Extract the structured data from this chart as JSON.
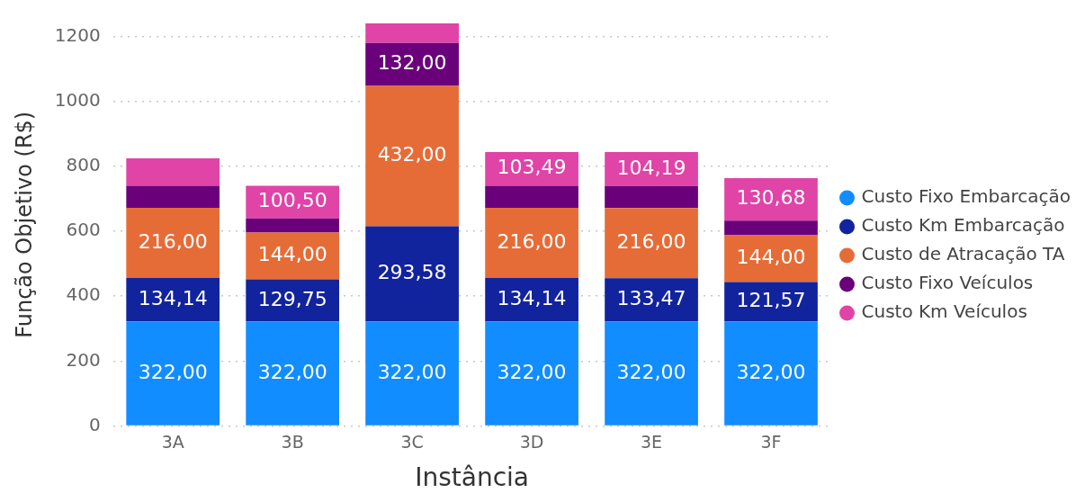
{
  "chart_data": {
    "type": "bar",
    "stacked": true,
    "xlabel": "Instância",
    "ylabel": "Função Objetivo (R$)",
    "categories": [
      "3A",
      "3B",
      "3C",
      "3D",
      "3E",
      "3F"
    ],
    "series": [
      {
        "name": "Custo Fixo Embarcação",
        "color": "#118dff",
        "values": [
          322,
          322,
          322,
          322,
          322,
          322
        ],
        "value_labels": [
          "322,00",
          "322,00",
          "322,00",
          "322,00",
          "322,00",
          "322,00"
        ]
      },
      {
        "name": "Custo Km Embarcação",
        "color": "#12239e",
        "values": [
          134.14,
          129.75,
          293.58,
          134.14,
          133.47,
          121.57
        ],
        "value_labels": [
          "134,14",
          "129,75",
          "293,58",
          "134,14",
          "133,47",
          "121,57"
        ]
      },
      {
        "name": "Custo de Atracação TA",
        "color": "#e66c37",
        "values": [
          216,
          144,
          432,
          216,
          216,
          144
        ],
        "value_labels": [
          "216,00",
          "144,00",
          "432,00",
          "216,00",
          "216,00",
          "144,00"
        ]
      },
      {
        "name": "Custo Fixo Veículos",
        "color": "#6b007b",
        "values": [
          68,
          44,
          132,
          68,
          68,
          45
        ],
        "value_labels": [
          null,
          null,
          "132,00",
          null,
          null,
          null
        ]
      },
      {
        "name": "Custo Km Veículos",
        "color": "#e044a7",
        "values": [
          84,
          100.5,
          64,
          103.49,
          104.19,
          130.68
        ],
        "value_labels": [
          null,
          "100,50",
          null,
          "103,49",
          "104,19",
          "130,68"
        ]
      }
    ],
    "ylim": [
      0,
      1240
    ],
    "yticks": [
      0,
      200,
      400,
      600,
      800,
      1000,
      1200
    ],
    "grid": "y",
    "legend": "right",
    "marker": "circle"
  }
}
